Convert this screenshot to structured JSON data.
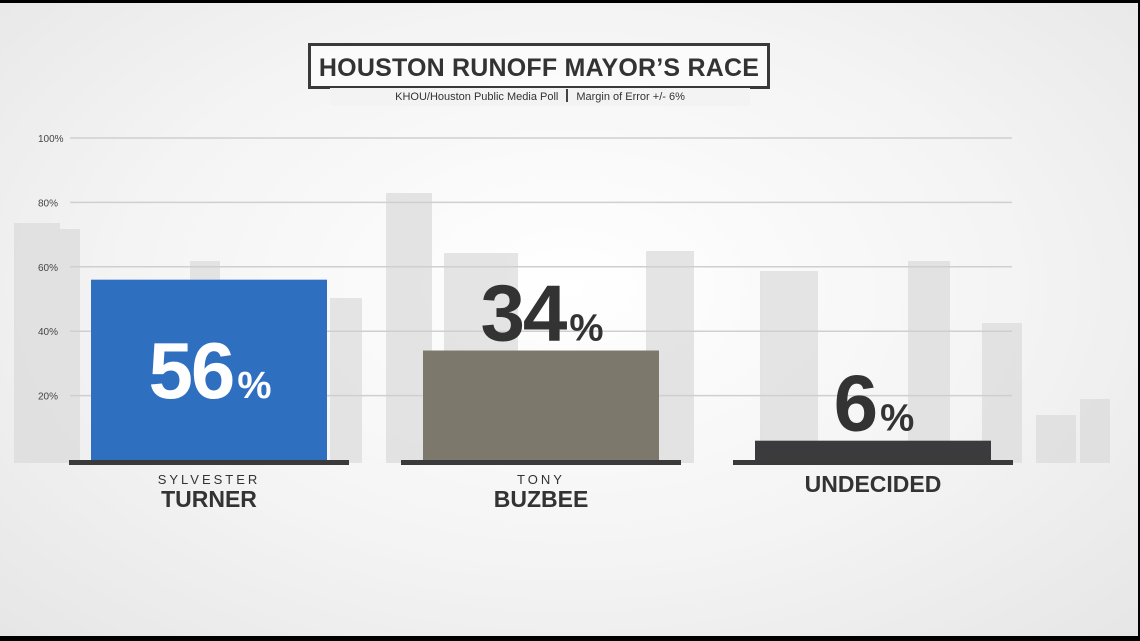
{
  "title": "HOUSTON RUNOFF MAYOR’S RACE",
  "subtitle": {
    "source": "KHOU/Houston Public Media Poll",
    "margin": "Margin of Error +/- 6%"
  },
  "chart_data": {
    "type": "bar",
    "categories": [
      "SYLVESTER TURNER",
      "TONY BUZBEE",
      "UNDECIDED"
    ],
    "category_lines": [
      {
        "first": "SYLVESTER",
        "last": "TURNER"
      },
      {
        "first": "TONY",
        "last": "BUZBEE"
      },
      {
        "first": "",
        "last": "UNDECIDED"
      }
    ],
    "values": [
      56,
      34,
      6
    ],
    "value_labels": [
      "56",
      "34",
      "6"
    ],
    "unit": "%",
    "ylim": [
      0,
      100
    ],
    "yticks": [
      20,
      40,
      60,
      80,
      100
    ],
    "ytick_labels": [
      "20%",
      "40%",
      "60%",
      "80%",
      "100%"
    ],
    "grid": true,
    "colors": [
      "#2f6fc0",
      "#7d786c",
      "#3b3b3d"
    ],
    "baseline_color": "#3a3a3a"
  }
}
